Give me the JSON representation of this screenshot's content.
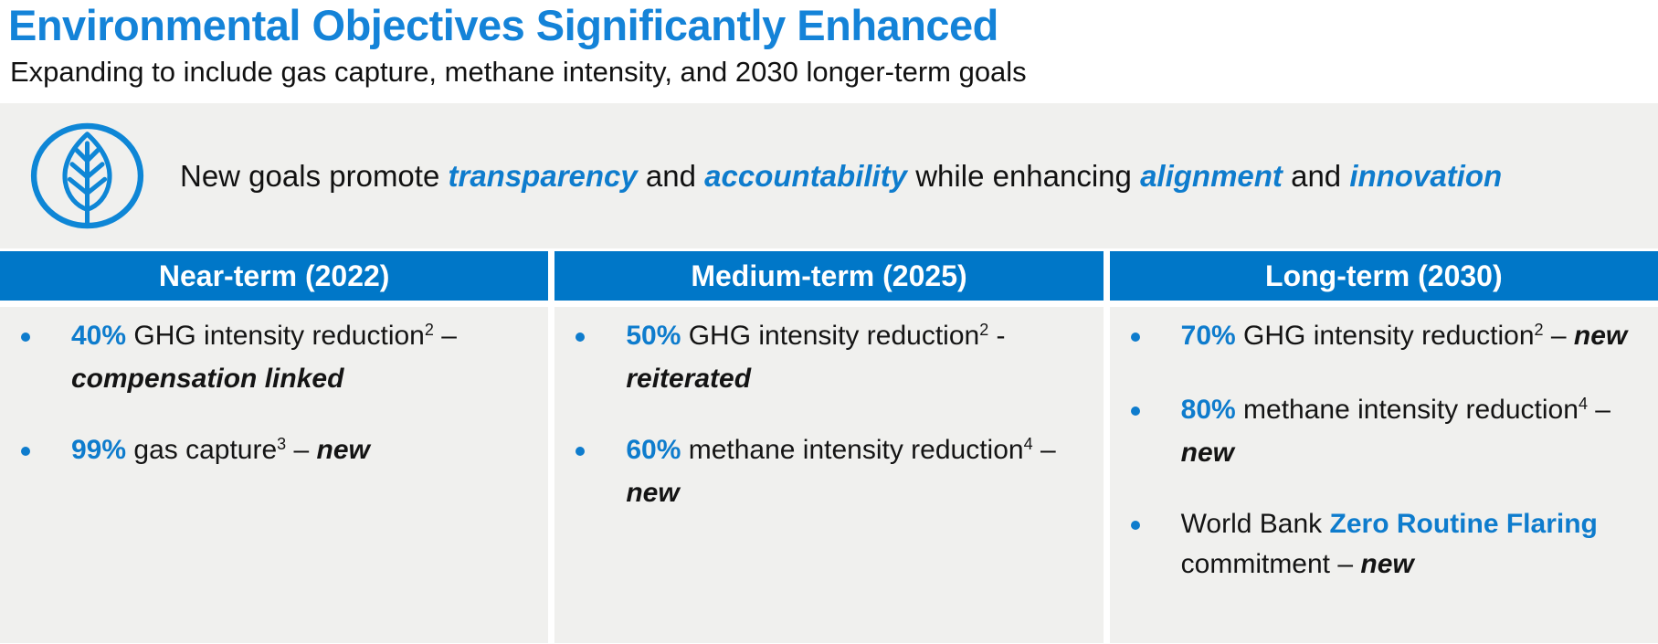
{
  "page": {
    "title": "Environmental Objectives Significantly Enhanced",
    "subtitle": "Expanding to include gas capture, methane intensity, and 2030 longer-term goals"
  },
  "colors": {
    "title_blue": "#1483d8",
    "accent_blue": "#0e7ccd",
    "header_blue": "#0077c8",
    "icon_blue": "#0e86d6",
    "panel_gray": "#f0f0ee",
    "text_black": "#1c1c1c",
    "white": "#ffffff"
  },
  "banner": {
    "icon": "leaf-icon",
    "segments": [
      {
        "text": "New goals promote ",
        "style": "plain"
      },
      {
        "text": "transparency",
        "style": "accent-bold-italic"
      },
      {
        "text": " and ",
        "style": "plain"
      },
      {
        "text": "accountability",
        "style": "accent-bold-italic"
      },
      {
        "text": " while enhancing ",
        "style": "plain"
      },
      {
        "text": "alignment",
        "style": "accent-bold-italic"
      },
      {
        "text": " and ",
        "style": "plain"
      },
      {
        "text": "innovation",
        "style": "accent-bold-italic"
      }
    ]
  },
  "table": {
    "columns": [
      {
        "header": "Near-term (2022)",
        "bullets": [
          [
            {
              "text": "40%",
              "style": "accent-bold"
            },
            {
              "text": " GHG intensity reduction",
              "style": "plain"
            },
            {
              "text": "2",
              "style": "sup"
            },
            {
              "text": " – ",
              "style": "plain"
            },
            {
              "text": "compensation linked",
              "style": "bold-italic"
            }
          ],
          [
            {
              "text": "99%",
              "style": "accent-bold"
            },
            {
              "text": " gas capture",
              "style": "plain"
            },
            {
              "text": "3",
              "style": "sup"
            },
            {
              "text": " – ",
              "style": "plain"
            },
            {
              "text": "new",
              "style": "bold-italic"
            }
          ]
        ]
      },
      {
        "header": "Medium-term (2025)",
        "bullets": [
          [
            {
              "text": "50%",
              "style": "accent-bold"
            },
            {
              "text": " GHG intensity reduction",
              "style": "plain"
            },
            {
              "text": "2",
              "style": "sup"
            },
            {
              "text": " - ",
              "style": "plain"
            },
            {
              "text": "reiterated",
              "style": "bold-italic"
            }
          ],
          [
            {
              "text": "60%",
              "style": "accent-bold"
            },
            {
              "text": " methane intensity reduction",
              "style": "plain"
            },
            {
              "text": "4",
              "style": "sup"
            },
            {
              "text": " – ",
              "style": "plain"
            },
            {
              "text": "new",
              "style": "bold-italic"
            }
          ]
        ]
      },
      {
        "header": "Long-term (2030)",
        "bullets": [
          [
            {
              "text": "70%",
              "style": "accent-bold"
            },
            {
              "text": " GHG intensity reduction",
              "style": "plain"
            },
            {
              "text": "2",
              "style": "sup"
            },
            {
              "text": " – ",
              "style": "plain"
            },
            {
              "text": "new",
              "style": "bold-italic"
            }
          ],
          [
            {
              "text": "80%",
              "style": "accent-bold"
            },
            {
              "text": " methane intensity reduction",
              "style": "plain"
            },
            {
              "text": "4",
              "style": "sup"
            },
            {
              "text": " – ",
              "style": "plain"
            },
            {
              "text": "new",
              "style": "bold-italic"
            }
          ],
          [
            {
              "text": "World Bank ",
              "style": "plain"
            },
            {
              "text": "Zero Routine Flaring",
              "style": "accent-bold"
            },
            {
              "text": " commitment – ",
              "style": "plain"
            },
            {
              "text": "new",
              "style": "bold-italic"
            }
          ]
        ]
      }
    ]
  }
}
